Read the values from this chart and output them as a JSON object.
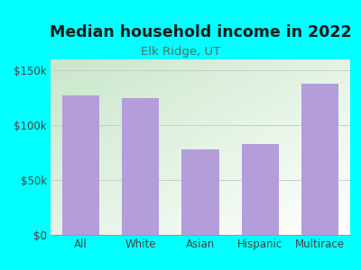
{
  "title": "Median household income in 2022",
  "subtitle": "Elk Ridge, UT",
  "categories": [
    "All",
    "White",
    "Asian",
    "Hispanic",
    "Multirace"
  ],
  "values": [
    127000,
    125000,
    78000,
    83000,
    138000
  ],
  "bar_color": "#b39ddb",
  "background_color": "#00ffff",
  "plot_bg_gradient_topleft": "#c8e6c9",
  "plot_bg_gradient_bottomright": "#ffffff",
  "title_fontsize": 12.5,
  "subtitle_fontsize": 9.5,
  "tick_label_fontsize": 8.5,
  "ylim": [
    0,
    160000
  ],
  "yticks": [
    0,
    50000,
    100000,
    150000
  ],
  "ytick_labels": [
    "$0",
    "$50k",
    "$100k",
    "$150k"
  ],
  "title_color": "#1a1a1a",
  "subtitle_color": "#666666",
  "tick_color": "#444444",
  "grid_color": "#cccccc"
}
